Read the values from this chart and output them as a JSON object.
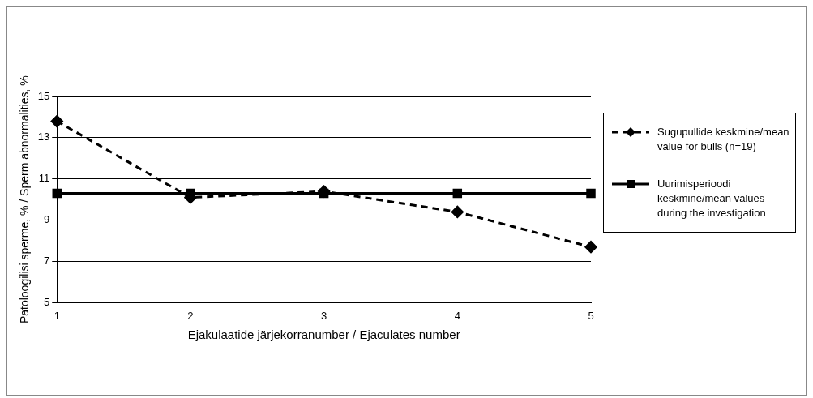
{
  "chart_data": {
    "type": "line",
    "xlabel": "Ejakulaatide järjekorranumber / Ejaculates number",
    "ylabel": "Patoloogilisi sperme, % / Sperm abnormalities, %",
    "categories": [
      "1",
      "2",
      "3",
      "4",
      "5"
    ],
    "series": [
      {
        "name": "Sugupullide keskmine/mean value for bulls (n=19)",
        "color": "#000000",
        "values": [
          13.8,
          10.1,
          10.4,
          9.4,
          7.7
        ],
        "marker": "diamond",
        "line_style": "dashed"
      },
      {
        "name": "Uurimisperioodi keskmine/mean values  during the investigation",
        "color": "#000000",
        "values": [
          10.3,
          10.3,
          10.3,
          10.3,
          10.3
        ],
        "marker": "square",
        "line_style": "solid"
      }
    ],
    "ylim": [
      5,
      15
    ],
    "yticks": [
      5,
      7,
      9,
      11,
      13,
      15
    ],
    "grid": "y",
    "legend": "right"
  }
}
